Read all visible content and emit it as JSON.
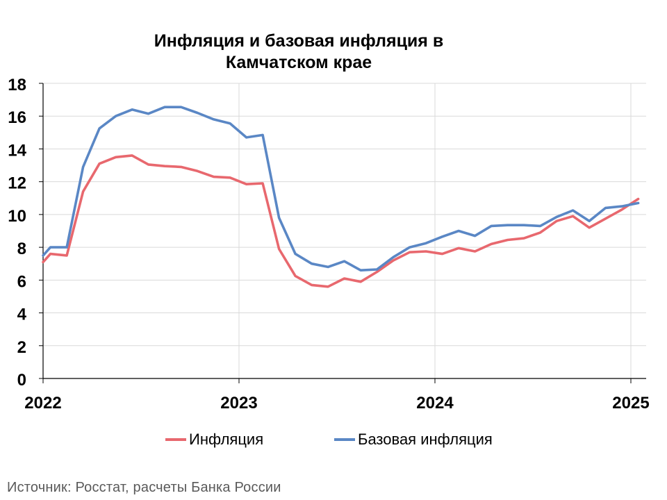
{
  "chart_data": {
    "type": "line",
    "title": "Инфляция и базовая инфляция в Камчатском крае",
    "title_lines": [
      "Инфляция и базовая инфляция в",
      "Камчатском крае"
    ],
    "xlabel": "",
    "ylabel": "",
    "ylim": [
      0,
      18
    ],
    "y_ticks": [
      0,
      2,
      4,
      6,
      8,
      10,
      12,
      14,
      16,
      18
    ],
    "x_range": [
      "2022-01",
      "2025-02"
    ],
    "x_tick_labels": [
      "2022",
      "2023",
      "2024",
      "2025"
    ],
    "grid": true,
    "legend_position": "bottom",
    "x": [
      "2022-01",
      "2022-02",
      "2022-03",
      "2022-04",
      "2022-05",
      "2022-06",
      "2022-07",
      "2022-08",
      "2022-09",
      "2022-10",
      "2022-11",
      "2022-12",
      "2023-01",
      "2023-02",
      "2023-03",
      "2023-04",
      "2023-05",
      "2023-06",
      "2023-07",
      "2023-08",
      "2023-09",
      "2023-10",
      "2023-11",
      "2023-12",
      "2024-01",
      "2024-02",
      "2024-03",
      "2024-04",
      "2024-05",
      "2024-06",
      "2024-07",
      "2024-08",
      "2024-09",
      "2024-10",
      "2024-11",
      "2024-12",
      "2025-01"
    ],
    "series": [
      {
        "name": "Инфляция",
        "color": "#e8686e",
        "values": [
          7.6,
          7.5,
          11.4,
          13.1,
          13.5,
          13.6,
          13.05,
          12.95,
          12.9,
          12.65,
          12.3,
          12.25,
          11.85,
          11.9,
          7.9,
          6.25,
          5.7,
          5.6,
          6.1,
          5.9,
          6.5,
          7.2,
          7.7,
          7.75,
          7.6,
          7.95,
          7.75,
          8.2,
          8.45,
          8.55,
          8.9,
          9.6,
          9.9,
          9.2,
          9.75,
          10.3,
          10.95
        ]
      },
      {
        "name": "Базовая инфляция",
        "color": "#5a87c5",
        "values": [
          8.0,
          8.0,
          12.9,
          15.25,
          16.0,
          16.4,
          16.15,
          16.55,
          16.55,
          16.2,
          15.8,
          15.55,
          14.7,
          14.85,
          9.8,
          7.6,
          7.0,
          6.8,
          7.15,
          6.6,
          6.65,
          7.4,
          8.0,
          8.25,
          8.65,
          9.0,
          8.7,
          9.3,
          9.35,
          9.35,
          9.3,
          9.85,
          10.25,
          9.6,
          10.4,
          10.5,
          10.7
        ]
      }
    ]
  },
  "source": "Источник: Росстат, расчеты Банка России"
}
